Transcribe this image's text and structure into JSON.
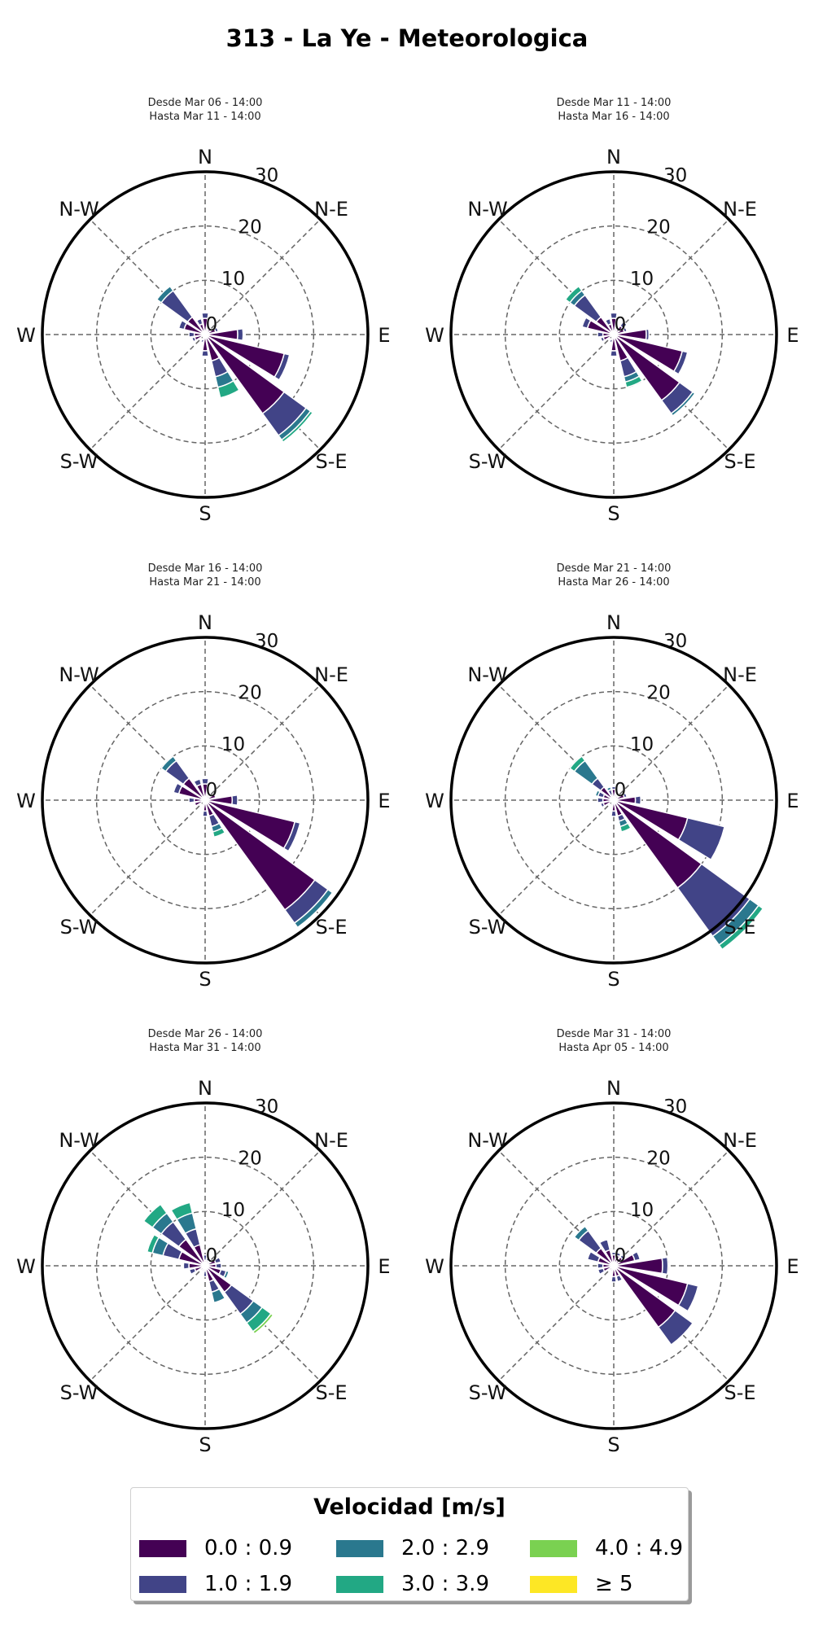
{
  "page_title": "313 - La Ye - Meteorologica",
  "legend": {
    "title": "Velocidad [m/s]",
    "bins": [
      {
        "label": "0.0 : 0.9",
        "color": "#440154"
      },
      {
        "label": "1.0 : 1.9",
        "color": "#414487"
      },
      {
        "label": "2.0 : 2.9",
        "color": "#2a788e"
      },
      {
        "label": "3.0 : 3.9",
        "color": "#22a884"
      },
      {
        "label": "4.0 : 4.9",
        "color": "#7ad151"
      },
      {
        "label": "≥  5",
        "color": "#fde725"
      }
    ]
  },
  "chart_data": [
    {
      "type": "windrose",
      "subtitle_line1": "Desde Mar 06 - 14:00",
      "subtitle_line2": "Hasta Mar 11 - 14:00",
      "direction_labels": [
        "N",
        "N-E",
        "E",
        "S-E",
        "S",
        "S-W",
        "W",
        "N-W"
      ],
      "radial_ticks": [
        "0",
        "10",
        "20",
        "30"
      ],
      "rmax": 30,
      "angles_deg": [
        0,
        22.5,
        45,
        67.5,
        90,
        112.5,
        135,
        157.5,
        180,
        202.5,
        225,
        247.5,
        270,
        292.5,
        315,
        337.5
      ],
      "stacks": [
        [
          3,
          1,
          0,
          0,
          0,
          0
        ],
        [
          1,
          0,
          0,
          0,
          0,
          0
        ],
        [
          1.5,
          0,
          0,
          0,
          0,
          0
        ],
        [
          2,
          0.5,
          0,
          0,
          0,
          0
        ],
        [
          6,
          1,
          0,
          0,
          0,
          0
        ],
        [
          15,
          1,
          0,
          0,
          0,
          0
        ],
        [
          18,
          5,
          1,
          0.5,
          0,
          0
        ],
        [
          5,
          3,
          2,
          2,
          0,
          0
        ],
        [
          3,
          1,
          0,
          0,
          0,
          0
        ],
        [
          1,
          0.5,
          0,
          0,
          0,
          0
        ],
        [
          0.5,
          0,
          0,
          0,
          0,
          0
        ],
        [
          2,
          0.5,
          0,
          0,
          0,
          0
        ],
        [
          2,
          1,
          0,
          0,
          0,
          0
        ],
        [
          4,
          1,
          0,
          0,
          0,
          0
        ],
        [
          4,
          6,
          1,
          0,
          0,
          0
        ],
        [
          2,
          1,
          0,
          0,
          0,
          0
        ]
      ]
    },
    {
      "type": "windrose",
      "subtitle_line1": "Desde Mar 11 - 14:00",
      "subtitle_line2": "Hasta Mar 16 - 14:00",
      "direction_labels": [
        "N",
        "N-E",
        "E",
        "S-E",
        "S",
        "S-W",
        "W",
        "N-W"
      ],
      "radial_ticks": [
        "0",
        "10",
        "20",
        "30"
      ],
      "rmax": 30,
      "angles_deg": [
        0,
        22.5,
        45,
        67.5,
        90,
        112.5,
        135,
        157.5,
        180,
        202.5,
        225,
        247.5,
        270,
        292.5,
        315,
        337.5
      ],
      "stacks": [
        [
          3,
          1,
          0,
          0,
          0,
          0
        ],
        [
          1,
          0,
          0,
          0,
          0,
          0
        ],
        [
          2,
          1,
          0,
          0,
          0,
          0
        ],
        [
          2,
          0.5,
          0,
          0,
          0,
          0
        ],
        [
          6,
          0.5,
          0,
          0,
          0,
          0
        ],
        [
          13,
          1,
          0,
          0,
          0,
          0
        ],
        [
          15,
          3,
          0.5,
          0,
          0,
          0
        ],
        [
          5,
          3,
          1,
          1,
          0,
          0
        ],
        [
          3,
          1,
          0,
          0,
          0,
          0
        ],
        [
          1,
          0.5,
          0,
          0,
          0,
          0
        ],
        [
          0.5,
          0,
          0,
          0,
          0,
          0
        ],
        [
          2,
          0.5,
          0,
          0,
          0,
          0
        ],
        [
          2,
          1,
          0,
          0,
          0,
          0
        ],
        [
          5,
          1,
          0,
          0,
          0,
          0
        ],
        [
          4,
          5,
          1,
          1,
          0,
          0
        ],
        [
          2,
          1,
          0,
          0,
          0,
          0
        ]
      ]
    },
    {
      "type": "windrose",
      "subtitle_line1": "Desde Mar 16 - 14:00",
      "subtitle_line2": "Hasta Mar 21 - 14:00",
      "direction_labels": [
        "N",
        "N-E",
        "E",
        "S-E",
        "S",
        "S-W",
        "W",
        "N-W"
      ],
      "radial_ticks": [
        "0",
        "10",
        "20",
        "30"
      ],
      "rmax": 30,
      "angles_deg": [
        0,
        22.5,
        45,
        67.5,
        90,
        112.5,
        135,
        157.5,
        180,
        202.5,
        225,
        247.5,
        270,
        292.5,
        315,
        337.5
      ],
      "stacks": [
        [
          3,
          1,
          0,
          0,
          0,
          0
        ],
        [
          1,
          0,
          0,
          0,
          0,
          0
        ],
        [
          1,
          0,
          0,
          0,
          0,
          0
        ],
        [
          2,
          0,
          0,
          0,
          0,
          0
        ],
        [
          5,
          1,
          0,
          0,
          0,
          0
        ],
        [
          17,
          1,
          0,
          0,
          0,
          0
        ],
        [
          25,
          3,
          1,
          0,
          0,
          0
        ],
        [
          3,
          2,
          1,
          1,
          0,
          0
        ],
        [
          2,
          1,
          0,
          0,
          0,
          0
        ],
        [
          1,
          0,
          0,
          0,
          0,
          0
        ],
        [
          0.5,
          0,
          0,
          0,
          0,
          0
        ],
        [
          2,
          0,
          0,
          0,
          0,
          0
        ],
        [
          2,
          1,
          0,
          0,
          0,
          0
        ],
        [
          5,
          1,
          0,
          0,
          0,
          0
        ],
        [
          5,
          4,
          1,
          0,
          0,
          0
        ],
        [
          3,
          1,
          0,
          0,
          0,
          0
        ]
      ]
    },
    {
      "type": "windrose",
      "subtitle_line1": "Desde Mar 21 - 14:00",
      "subtitle_line2": "Hasta Mar 26 - 14:00",
      "direction_labels": [
        "N",
        "N-E",
        "E",
        "S-E",
        "S",
        "S-W",
        "W",
        "N-W"
      ],
      "radial_ticks": [
        "0",
        "10",
        "20",
        "30"
      ],
      "rmax": 30,
      "angles_deg": [
        0,
        22.5,
        45,
        67.5,
        90,
        112.5,
        135,
        157.5,
        180,
        202.5,
        225,
        247.5,
        270,
        292.5,
        315,
        337.5
      ],
      "stacks": [
        [
          2,
          0.5,
          0,
          0,
          0,
          0
        ],
        [
          1,
          0,
          0,
          0,
          0,
          0
        ],
        [
          1,
          0,
          0,
          0,
          0,
          0
        ],
        [
          2,
          0.5,
          0,
          0,
          0,
          0
        ],
        [
          4,
          1,
          0,
          0,
          0,
          0
        ],
        [
          14,
          7,
          0,
          0,
          0,
          0
        ],
        [
          20,
          11,
          2,
          1,
          0,
          0
        ],
        [
          3,
          1,
          1,
          1,
          0,
          0
        ],
        [
          2,
          1,
          0,
          0,
          0,
          0
        ],
        [
          1,
          0,
          0,
          0,
          0,
          0
        ],
        [
          0.5,
          0,
          0,
          0,
          0,
          0
        ],
        [
          2,
          0.5,
          0,
          0,
          0,
          0
        ],
        [
          2,
          1,
          0,
          0,
          0,
          0
        ],
        [
          2,
          1,
          0.5,
          0,
          0,
          0
        ],
        [
          3,
          2,
          4,
          1,
          0,
          0
        ],
        [
          1,
          1,
          0.5,
          0,
          0,
          0
        ]
      ]
    },
    {
      "type": "windrose",
      "subtitle_line1": "Desde Mar 26 - 14:00",
      "subtitle_line2": "Hasta Mar 31 - 14:00",
      "direction_labels": [
        "N",
        "N-E",
        "E",
        "S-E",
        "S",
        "S-W",
        "W",
        "N-W"
      ],
      "radial_ticks": [
        "0",
        "10",
        "20",
        "30"
      ],
      "rmax": 30,
      "angles_deg": [
        0,
        22.5,
        45,
        67.5,
        90,
        112.5,
        135,
        157.5,
        180,
        202.5,
        225,
        247.5,
        270,
        292.5,
        315,
        337.5
      ],
      "stacks": [
        [
          1,
          1,
          0,
          0,
          0,
          0
        ],
        [
          1,
          0.5,
          0,
          0,
          0,
          0
        ],
        [
          1,
          0.5,
          0,
          0,
          0,
          0
        ],
        [
          2,
          1,
          0,
          0,
          0,
          0
        ],
        [
          2,
          1,
          0,
          0,
          0,
          0
        ],
        [
          3,
          1,
          0.5,
          0,
          0,
          0
        ],
        [
          6,
          5,
          2,
          2,
          0.5,
          0
        ],
        [
          3,
          2,
          2,
          0,
          0,
          0
        ],
        [
          1,
          1,
          0,
          0,
          0,
          0
        ],
        [
          1,
          0,
          0,
          0,
          0,
          0
        ],
        [
          1,
          0,
          0,
          0,
          0,
          0
        ],
        [
          2,
          1,
          0,
          0,
          0,
          0
        ],
        [
          3,
          1,
          0,
          0,
          0,
          0
        ],
        [
          5,
          3,
          2,
          1,
          0,
          0
        ],
        [
          6,
          4,
          2,
          2,
          0,
          0
        ],
        [
          4,
          3,
          3,
          2,
          0,
          0
        ]
      ]
    },
    {
      "type": "windrose",
      "subtitle_line1": "Desde Mar 31 - 14:00",
      "subtitle_line2": "Hasta Apr 05 - 14:00",
      "direction_labels": [
        "N",
        "N-E",
        "E",
        "S-E",
        "S",
        "S-W",
        "W",
        "N-W"
      ],
      "radial_ticks": [
        "0",
        "10",
        "20",
        "30"
      ],
      "rmax": 30,
      "angles_deg": [
        0,
        22.5,
        45,
        67.5,
        90,
        112.5,
        135,
        157.5,
        180,
        202.5,
        225,
        247.5,
        270,
        292.5,
        315,
        337.5
      ],
      "stacks": [
        [
          2,
          0.5,
          0,
          0,
          0,
          0
        ],
        [
          2,
          0.5,
          0,
          0,
          0,
          0
        ],
        [
          2,
          0.5,
          0,
          0,
          0,
          0
        ],
        [
          4,
          1,
          0,
          0,
          0,
          0
        ],
        [
          9,
          1,
          0,
          0,
          0,
          0
        ],
        [
          14,
          2,
          0,
          0,
          0,
          0
        ],
        [
          14,
          4,
          0,
          0,
          0,
          0
        ],
        [
          2,
          1,
          0,
          0,
          0,
          0
        ],
        [
          2,
          1,
          0,
          0,
          0,
          0
        ],
        [
          1,
          0,
          0,
          0,
          0,
          0
        ],
        [
          1,
          0,
          0,
          0,
          0,
          0
        ],
        [
          2,
          1,
          0,
          0,
          0,
          0
        ],
        [
          2,
          1,
          0,
          0,
          0,
          0
        ],
        [
          3,
          2,
          0,
          0,
          0,
          0
        ],
        [
          4,
          4,
          1,
          0,
          0,
          0
        ],
        [
          3,
          2,
          0,
          0,
          0,
          0
        ]
      ]
    }
  ]
}
